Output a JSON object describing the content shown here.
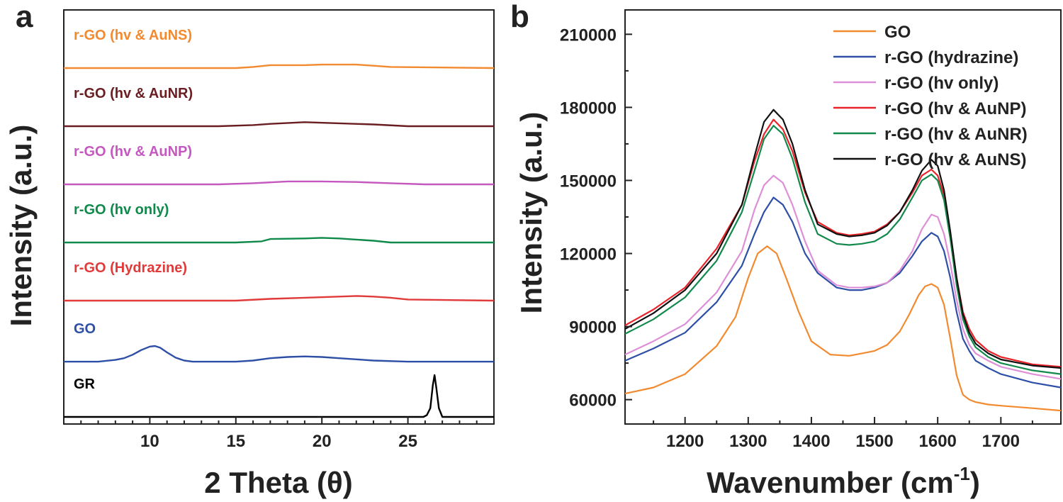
{
  "chart_data": [
    {
      "panel_label": "a",
      "type": "line",
      "xlabel": "2 Theta (θ)",
      "ylabel": "Intensity (a.u.)",
      "xlim": [
        5,
        30
      ],
      "xticks": [
        10,
        15,
        20,
        25
      ],
      "yticks": [],
      "series": [
        {
          "name": "GR",
          "color": "#000000",
          "offset": 0.0,
          "x": [
            5,
            10,
            15,
            20,
            24,
            25.9,
            26.1,
            26.3,
            26.45,
            26.55,
            26.65,
            26.8,
            27.0,
            28,
            30
          ],
          "y": [
            0.0,
            0.0,
            0.0,
            0.0,
            0.0,
            0.0,
            0.03,
            0.15,
            0.55,
            0.72,
            0.5,
            0.15,
            0.0,
            0.0,
            0.0
          ]
        },
        {
          "name": "GO",
          "color": "#2e4fa6",
          "offset": 0.95,
          "x": [
            5,
            7,
            8,
            8.5,
            9,
            9.5,
            10,
            10.3,
            10.6,
            11,
            11.5,
            12,
            12.5,
            15,
            16,
            17,
            18,
            19,
            20,
            21,
            22,
            23,
            25,
            30
          ],
          "y": [
            0.0,
            0.0,
            0.03,
            0.06,
            0.12,
            0.2,
            0.26,
            0.27,
            0.24,
            0.16,
            0.07,
            0.02,
            0.0,
            0.0,
            0.02,
            0.06,
            0.08,
            0.09,
            0.08,
            0.06,
            0.04,
            0.02,
            0.0,
            0.0
          ]
        },
        {
          "name": "r-GO (Hydrazine)",
          "color": "#e03a3a",
          "offset": 2.0,
          "x": [
            5,
            10,
            15,
            17,
            19,
            21,
            22,
            23,
            24,
            25,
            30
          ],
          "y": [
            0.0,
            0.0,
            0.0,
            0.03,
            0.05,
            0.07,
            0.08,
            0.07,
            0.05,
            0.02,
            0.0
          ]
        },
        {
          "name": "r-GO (hv only)",
          "color": "#0f8a4a",
          "offset": 3.0,
          "x": [
            5,
            10,
            15,
            16.5,
            17,
            19,
            20,
            21,
            22,
            23,
            24,
            30
          ],
          "y": [
            0.0,
            0.0,
            0.0,
            0.02,
            0.06,
            0.07,
            0.08,
            0.07,
            0.05,
            0.03,
            0.0,
            0.0
          ]
        },
        {
          "name": "r-GO (hv & AuNP)",
          "color": "#c558bf",
          "offset": 4.0,
          "x": [
            5,
            10,
            14,
            16,
            18,
            20,
            22,
            24,
            26,
            30
          ],
          "y": [
            0.0,
            0.0,
            0.0,
            0.02,
            0.05,
            0.05,
            0.04,
            0.02,
            0.0,
            0.0
          ]
        },
        {
          "name": "r-GO (hv & AuNR)",
          "color": "#6a1e22",
          "offset": 5.0,
          "x": [
            5,
            10,
            14,
            16,
            17,
            19,
            21,
            23,
            25,
            30
          ],
          "y": [
            0.0,
            0.0,
            0.0,
            0.02,
            0.04,
            0.07,
            0.05,
            0.03,
            0.0,
            0.0
          ]
        },
        {
          "name": "r-GO (hv & AuNS)",
          "color": "#f28a30",
          "offset": 6.0,
          "x": [
            5,
            10,
            15,
            16,
            17,
            19,
            20,
            21,
            22,
            23,
            24,
            30
          ],
          "y": [
            0.0,
            0.0,
            0.0,
            0.02,
            0.05,
            0.05,
            0.06,
            0.06,
            0.06,
            0.04,
            0.02,
            0.0
          ]
        }
      ]
    },
    {
      "panel_label": "b",
      "type": "line",
      "xlabel": "Wavenumber (cm-1)",
      "xlabel_main": "Wavenumber (cm",
      "xlabel_sup": "-1",
      "xlabel_close": ")",
      "ylabel": "Intensity (a.u.)",
      "xlim": [
        1105,
        1795
      ],
      "ylim": [
        50000,
        220000
      ],
      "xticks": [
        1200,
        1300,
        1400,
        1500,
        1600,
        1700
      ],
      "yticks": [
        60000,
        90000,
        120000,
        150000,
        180000,
        210000
      ],
      "legend_position": "top-right",
      "series": [
        {
          "name": "GO",
          "color": "#f28a30",
          "x": [
            1105,
            1150,
            1200,
            1250,
            1280,
            1300,
            1315,
            1330,
            1345,
            1360,
            1380,
            1400,
            1430,
            1460,
            1480,
            1500,
            1520,
            1540,
            1555,
            1570,
            1580,
            1590,
            1600,
            1610,
            1620,
            1630,
            1640,
            1650,
            1660,
            1680,
            1700,
            1750,
            1795
          ],
          "y": [
            62500,
            65000,
            70500,
            82000,
            94000,
            110000,
            120000,
            123000,
            120000,
            110000,
            96000,
            84000,
            78500,
            78000,
            79000,
            80000,
            82500,
            88000,
            95000,
            103000,
            106500,
            107500,
            106000,
            99000,
            85000,
            70000,
            62000,
            60000,
            59000,
            58000,
            57500,
            56500,
            55500
          ]
        },
        {
          "name": "r-GO (hydrazine)",
          "color": "#2e4fa6",
          "x": [
            1105,
            1150,
            1200,
            1250,
            1290,
            1310,
            1325,
            1340,
            1355,
            1370,
            1390,
            1410,
            1440,
            1460,
            1480,
            1500,
            1520,
            1540,
            1560,
            1575,
            1590,
            1600,
            1610,
            1620,
            1630,
            1640,
            1650,
            1660,
            1680,
            1700,
            1750,
            1795
          ],
          "y": [
            76000,
            81000,
            87500,
            100000,
            115000,
            128000,
            137000,
            143000,
            140000,
            133000,
            120000,
            112000,
            106000,
            105000,
            105000,
            106000,
            108000,
            112000,
            119000,
            125000,
            128500,
            127000,
            121000,
            110000,
            96000,
            85000,
            80000,
            76000,
            73000,
            70500,
            67000,
            65000
          ]
        },
        {
          "name": "r-GO (hv only)",
          "color": "#dd8fd8",
          "x": [
            1105,
            1150,
            1200,
            1250,
            1290,
            1310,
            1325,
            1340,
            1355,
            1370,
            1390,
            1410,
            1440,
            1460,
            1480,
            1500,
            1520,
            1540,
            1560,
            1575,
            1590,
            1600,
            1610,
            1620,
            1630,
            1640,
            1650,
            1660,
            1680,
            1700,
            1750,
            1795
          ],
          "y": [
            78500,
            84000,
            91000,
            104000,
            121000,
            138000,
            148000,
            152000,
            149000,
            140000,
            125000,
            113000,
            107000,
            106000,
            106000,
            106500,
            108000,
            113000,
            121000,
            130000,
            136000,
            135000,
            128000,
            116000,
            101000,
            89000,
            82500,
            79000,
            76000,
            73500,
            70500,
            68500
          ]
        },
        {
          "name": "r-GO (hv & AuNP)",
          "color": "#e8232a",
          "x": [
            1105,
            1150,
            1200,
            1250,
            1290,
            1310,
            1325,
            1340,
            1355,
            1370,
            1390,
            1410,
            1440,
            1460,
            1480,
            1500,
            1520,
            1540,
            1560,
            1575,
            1590,
            1600,
            1610,
            1620,
            1630,
            1640,
            1650,
            1660,
            1680,
            1700,
            1750,
            1795
          ],
          "y": [
            90500,
            97000,
            106000,
            122000,
            140000,
            158000,
            169000,
            175000,
            171000,
            162000,
            145000,
            133000,
            128500,
            127500,
            128000,
            129000,
            132000,
            137000,
            145000,
            152000,
            154500,
            152000,
            144000,
            128000,
            110000,
            96000,
            89000,
            84500,
            80000,
            77500,
            74500,
            73500
          ]
        },
        {
          "name": "r-GO (hv & AuNR)",
          "color": "#138a4c",
          "x": [
            1105,
            1150,
            1200,
            1250,
            1290,
            1310,
            1325,
            1340,
            1355,
            1370,
            1390,
            1410,
            1440,
            1460,
            1480,
            1500,
            1520,
            1540,
            1560,
            1575,
            1590,
            1600,
            1610,
            1620,
            1630,
            1640,
            1650,
            1660,
            1680,
            1700,
            1750,
            1795
          ],
          "y": [
            87000,
            93000,
            102000,
            117000,
            137000,
            154000,
            167000,
            172500,
            169000,
            159000,
            141000,
            128000,
            124000,
            123500,
            124000,
            125000,
            128000,
            134000,
            143000,
            150000,
            152500,
            150000,
            142000,
            126000,
            107000,
            93000,
            86000,
            81500,
            77500,
            75000,
            72000,
            70500
          ]
        },
        {
          "name": "r-GO (hv & AuNS)",
          "color": "#111111",
          "x": [
            1105,
            1150,
            1200,
            1250,
            1290,
            1310,
            1325,
            1340,
            1355,
            1370,
            1390,
            1410,
            1440,
            1460,
            1480,
            1500,
            1520,
            1540,
            1560,
            1575,
            1590,
            1600,
            1610,
            1620,
            1630,
            1640,
            1650,
            1660,
            1680,
            1700,
            1750,
            1795
          ],
          "y": [
            89000,
            95500,
            105000,
            120000,
            140000,
            160000,
            174000,
            179000,
            175000,
            165000,
            146000,
            132000,
            128000,
            127000,
            127500,
            128500,
            131500,
            137000,
            146000,
            154000,
            158500,
            156000,
            146000,
            129000,
            110000,
            95000,
            87500,
            83000,
            79000,
            76500,
            74000,
            73000
          ]
        }
      ]
    }
  ]
}
